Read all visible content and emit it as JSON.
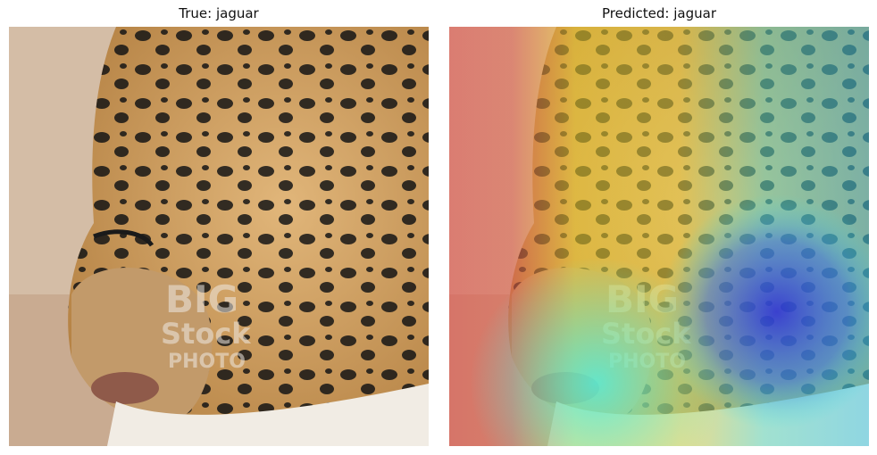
{
  "panels": [
    {
      "title": "True: jaguar"
    },
    {
      "title": "Predicted: jaguar"
    }
  ],
  "image": {
    "subject": "jaguar face close-up",
    "watermark_lines": [
      "BIG",
      "Stock",
      "PHOTO"
    ]
  },
  "colors": {
    "fur": "#c99a5c",
    "spots": "#141414",
    "ground": "#cdb49c",
    "heat_high": "#e03c3c",
    "heat_mid": "#f2d21e",
    "heat_low": "#3ce6e6",
    "heat_min": "#2a2ad8"
  }
}
